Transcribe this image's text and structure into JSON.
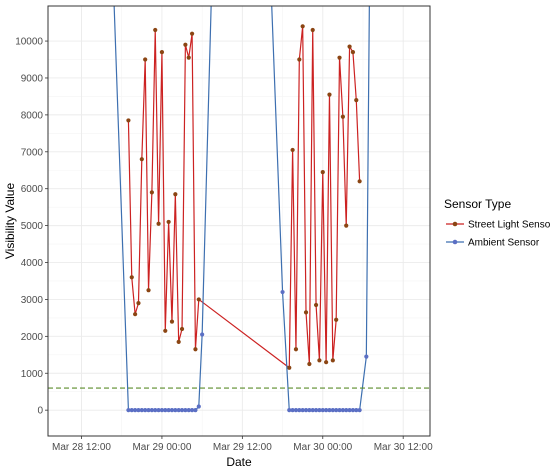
{
  "chart_data": {
    "type": "line",
    "xlabel": "Date",
    "ylabel": "Visibility Value",
    "x_ticks": [
      "Mar 28 12:00",
      "Mar 29 00:00",
      "Mar 29 12:00",
      "Mar 30 00:00",
      "Mar 30 12:00"
    ],
    "y_ticks": [
      0,
      1000,
      2000,
      3000,
      4000,
      5000,
      6000,
      7000,
      8000,
      9000,
      10000
    ],
    "xlim": [
      "Mar 28 07:00",
      "Mar 30 16:00"
    ],
    "ylim": [
      -700,
      10950
    ],
    "grid": true,
    "legend": {
      "title": "Sensor Type",
      "position": "right"
    },
    "reference_line": {
      "y": 600,
      "color": "#5b8c2a",
      "style": "dashed"
    },
    "series": [
      {
        "name": "Street Light Sensor",
        "color": "#8b4513",
        "line_color": "#cc2222",
        "points": [
          [
            "Mar 28 19:00",
            7850
          ],
          [
            "Mar 28 19:30",
            3600
          ],
          [
            "Mar 28 20:00",
            2600
          ],
          [
            "Mar 28 20:30",
            2900
          ],
          [
            "Mar 28 21:00",
            6800
          ],
          [
            "Mar 28 21:30",
            9500
          ],
          [
            "Mar 28 22:00",
            3250
          ],
          [
            "Mar 28 22:30",
            5900
          ],
          [
            "Mar 28 23:00",
            10300
          ],
          [
            "Mar 28 23:30",
            5050
          ],
          [
            "Mar 29 00:00",
            9700
          ],
          [
            "Mar 29 00:30",
            2150
          ],
          [
            "Mar 29 01:00",
            5100
          ],
          [
            "Mar 29 01:30",
            2400
          ],
          [
            "Mar 29 02:00",
            5850
          ],
          [
            "Mar 29 02:30",
            1850
          ],
          [
            "Mar 29 03:00",
            2200
          ],
          [
            "Mar 29 03:30",
            9900
          ],
          [
            "Mar 29 04:00",
            9550
          ],
          [
            "Mar 29 04:30",
            10200
          ],
          [
            "Mar 29 05:00",
            1650
          ],
          [
            "Mar 29 05:30",
            3000
          ],
          [
            "Mar 29 19:00",
            1150
          ],
          [
            "Mar 29 19:30",
            7050
          ],
          [
            "Mar 29 20:00",
            1650
          ],
          [
            "Mar 29 20:30",
            9500
          ],
          [
            "Mar 29 21:00",
            10400
          ],
          [
            "Mar 29 21:30",
            2650
          ],
          [
            "Mar 29 22:00",
            1250
          ],
          [
            "Mar 29 22:30",
            10300
          ],
          [
            "Mar 29 23:00",
            2850
          ],
          [
            "Mar 29 23:30",
            1350
          ],
          [
            "Mar 30 00:00",
            6450
          ],
          [
            "Mar 30 00:30",
            1300
          ],
          [
            "Mar 30 01:00",
            8550
          ],
          [
            "Mar 30 01:30",
            1350
          ],
          [
            "Mar 30 02:00",
            2450
          ],
          [
            "Mar 30 02:30",
            9550
          ],
          [
            "Mar 30 03:00",
            7950
          ],
          [
            "Mar 30 03:30",
            5000
          ],
          [
            "Mar 30 04:00",
            9850
          ],
          [
            "Mar 30 04:30",
            9700
          ],
          [
            "Mar 30 05:00",
            8400
          ],
          [
            "Mar 30 05:30",
            6200
          ]
        ]
      },
      {
        "name": "Ambient Sensor",
        "color": "#5b6fc4",
        "line_color": "#3d6fb0",
        "points": [
          [
            "Mar 28 16:40",
            12000
          ],
          [
            "Mar 28 19:00",
            0
          ],
          [
            "Mar 28 19:30",
            0
          ],
          [
            "Mar 28 20:00",
            0
          ],
          [
            "Mar 28 20:30",
            0
          ],
          [
            "Mar 28 21:00",
            0
          ],
          [
            "Mar 28 21:30",
            0
          ],
          [
            "Mar 28 22:00",
            0
          ],
          [
            "Mar 28 22:30",
            0
          ],
          [
            "Mar 28 23:00",
            0
          ],
          [
            "Mar 28 23:30",
            0
          ],
          [
            "Mar 29 00:00",
            0
          ],
          [
            "Mar 29 00:30",
            0
          ],
          [
            "Mar 29 01:00",
            0
          ],
          [
            "Mar 29 01:30",
            0
          ],
          [
            "Mar 29 02:00",
            0
          ],
          [
            "Mar 29 02:30",
            0
          ],
          [
            "Mar 29 03:00",
            0
          ],
          [
            "Mar 29 03:30",
            0
          ],
          [
            "Mar 29 04:00",
            0
          ],
          [
            "Mar 29 04:30",
            0
          ],
          [
            "Mar 29 05:00",
            0
          ],
          [
            "Mar 29 05:30",
            100
          ],
          [
            "Mar 29 06:00",
            2050
          ],
          [
            "Mar 29 07:30",
            12000
          ],
          [
            "Mar 29 16:10",
            12000
          ],
          [
            "Mar 29 18:00",
            3200
          ],
          [
            "Mar 29 19:00",
            0
          ],
          [
            "Mar 29 19:30",
            0
          ],
          [
            "Mar 29 20:00",
            0
          ],
          [
            "Mar 29 20:30",
            0
          ],
          [
            "Mar 29 21:00",
            0
          ],
          [
            "Mar 29 21:30",
            0
          ],
          [
            "Mar 29 22:00",
            0
          ],
          [
            "Mar 29 22:30",
            0
          ],
          [
            "Mar 29 23:00",
            0
          ],
          [
            "Mar 29 23:30",
            0
          ],
          [
            "Mar 30 00:00",
            0
          ],
          [
            "Mar 30 00:30",
            0
          ],
          [
            "Mar 30 01:00",
            0
          ],
          [
            "Mar 30 01:30",
            0
          ],
          [
            "Mar 30 02:00",
            0
          ],
          [
            "Mar 30 02:30",
            0
          ],
          [
            "Mar 30 03:00",
            0
          ],
          [
            "Mar 30 03:30",
            0
          ],
          [
            "Mar 30 04:00",
            0
          ],
          [
            "Mar 30 04:30",
            0
          ],
          [
            "Mar 30 05:00",
            0
          ],
          [
            "Mar 30 05:30",
            0
          ],
          [
            "Mar 30 06:30",
            1450
          ],
          [
            "Mar 30 07:00",
            12000
          ]
        ]
      }
    ]
  }
}
